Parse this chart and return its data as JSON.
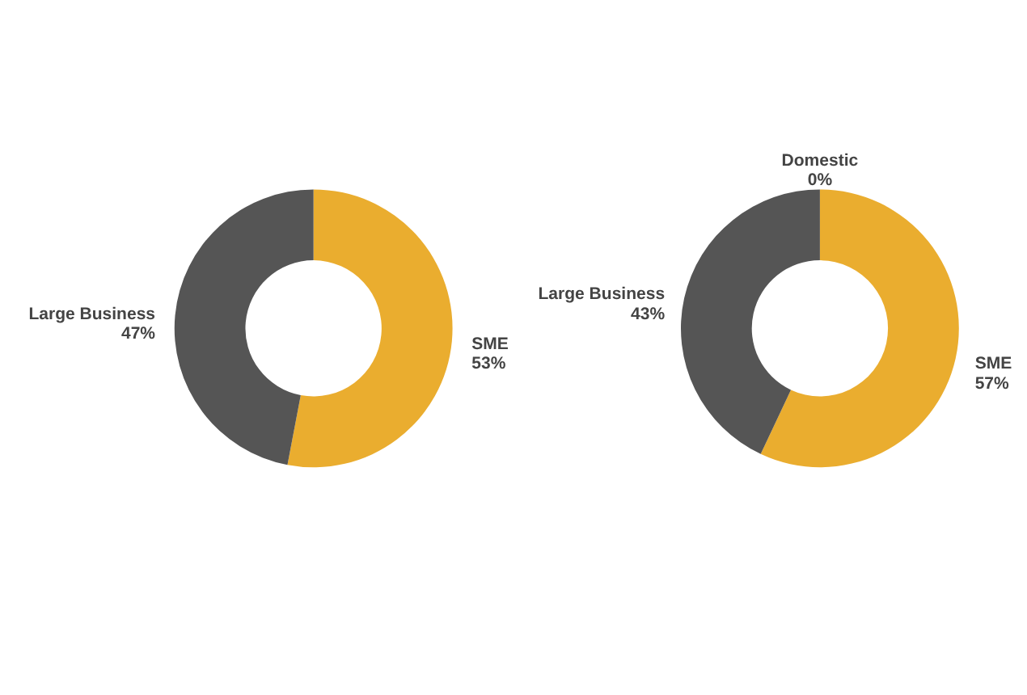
{
  "chart_data": [
    {
      "type": "donut",
      "categories": [
        "SME",
        "Large Business"
      ],
      "values": [
        53,
        47
      ],
      "colors": [
        "#eaad2f",
        "#555555"
      ],
      "value_labels": [
        "53%",
        "47%"
      ],
      "legend": false
    },
    {
      "type": "donut",
      "categories": [
        "Domestic",
        "SME",
        "Large Business"
      ],
      "values": [
        0,
        57,
        43
      ],
      "colors": [
        "#8a8a8a",
        "#eaad2f",
        "#555555"
      ],
      "value_labels": [
        "0%",
        "57%",
        "43%"
      ],
      "legend": false
    }
  ]
}
